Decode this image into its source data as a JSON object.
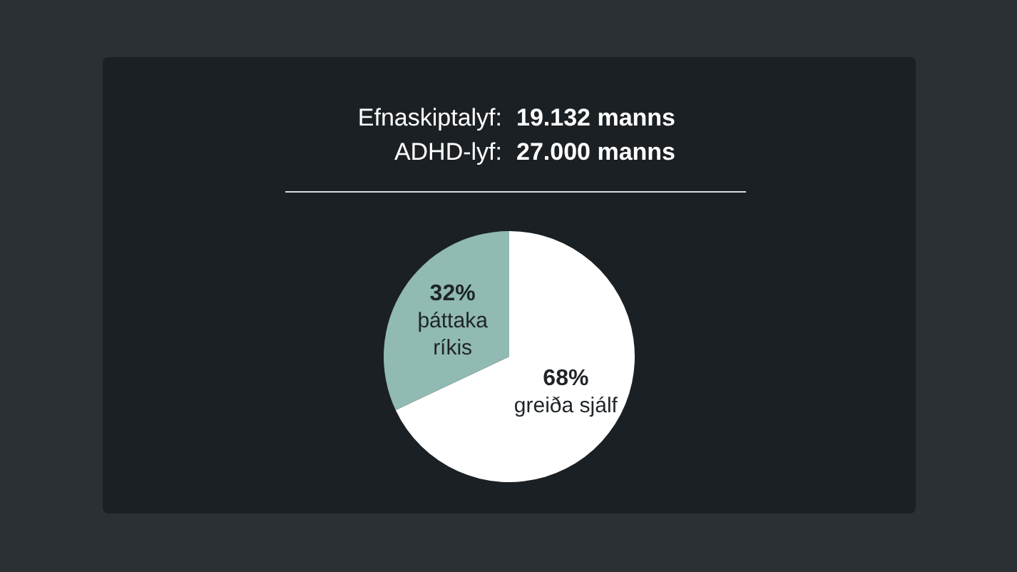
{
  "chart_data": {
    "type": "pie",
    "annotations": [
      "Efnaskiptalyf:",
      "19.132 manns",
      "ADHD-lyf:",
      "27.000 manns"
    ],
    "categories": [
      "greiða sjálf",
      "þáttaka ríkis"
    ],
    "values": [
      68,
      32
    ],
    "colors": [
      "#ffffff",
      "#90bab2"
    ],
    "value_labels": [
      "68%",
      "32%"
    ],
    "legend": false
  }
}
